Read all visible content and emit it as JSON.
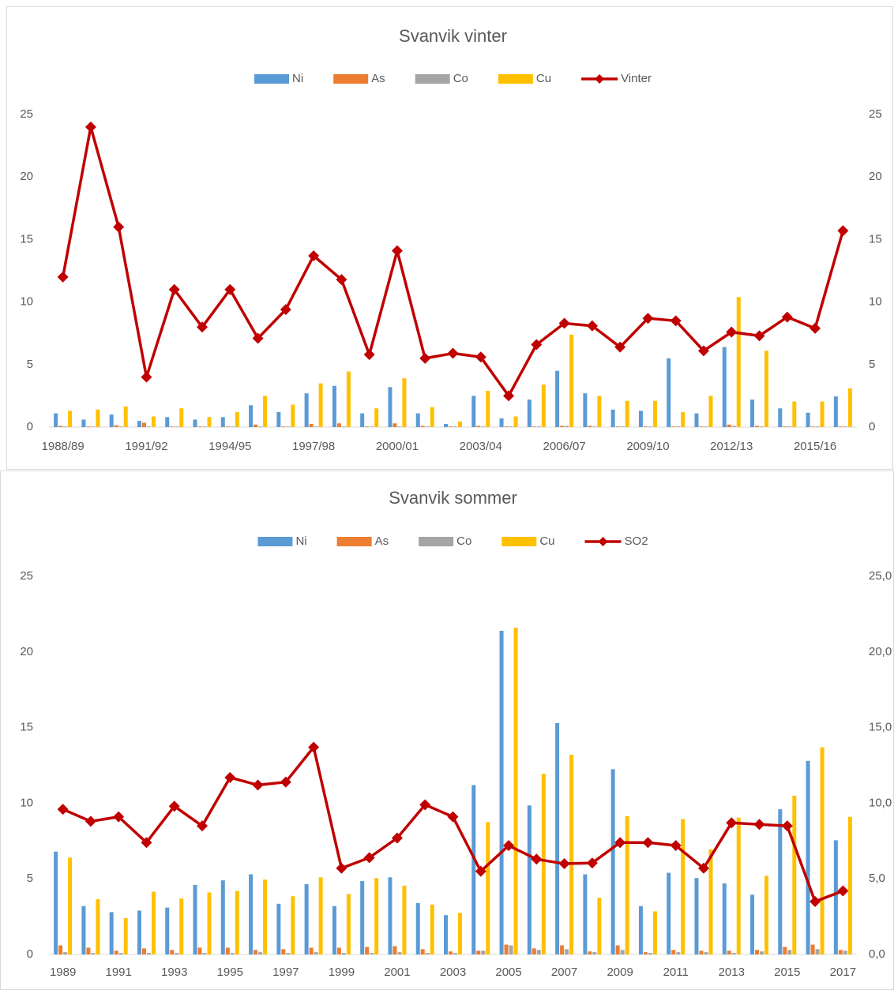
{
  "chart_data": [
    {
      "type": "bar",
      "title": "Svanvik vinter",
      "categories": [
        "1988/89",
        null,
        null,
        "1991/92",
        null,
        null,
        "1994/95",
        null,
        null,
        "1997/98",
        null,
        null,
        "2000/01",
        null,
        null,
        "2003/04",
        null,
        null,
        "2006/07",
        null,
        null,
        "2009/10",
        null,
        null,
        "2012/13",
        null,
        null,
        "2015/16",
        null
      ],
      "series": [
        {
          "name": "Ni",
          "color": "#5b9bd5",
          "values": [
            1.1,
            0.6,
            1.0,
            0.5,
            0.8,
            0.6,
            0.8,
            1.75,
            1.2,
            2.7,
            3.3,
            1.1,
            3.2,
            1.1,
            0.25,
            2.5,
            0.7,
            2.2,
            4.5,
            2.7,
            1.4,
            1.3,
            5.5,
            1.1,
            6.4,
            2.2,
            1.5,
            1.15,
            2.45
          ]
        },
        {
          "name": "As",
          "color": "#ed7d31",
          "values": [
            0.1,
            0.05,
            0.15,
            0.35,
            0.05,
            0.05,
            0.05,
            0.2,
            0.05,
            0.25,
            0.3,
            0.05,
            0.3,
            0.1,
            0.05,
            0.1,
            0.05,
            0.05,
            0.1,
            0.1,
            0.05,
            0.05,
            0.05,
            0.05,
            0.2,
            0.1,
            0.05,
            0.05,
            0.05
          ]
        },
        {
          "name": "Co",
          "color": "#a5a5a5",
          "values": [
            0.05,
            0.05,
            0.05,
            0.05,
            0.05,
            0.05,
            0.05,
            0.05,
            0.05,
            0.05,
            0.05,
            0.05,
            0.05,
            0.05,
            0.05,
            0.05,
            0.05,
            0.05,
            0.1,
            0.05,
            0.05,
            0.05,
            0.05,
            0.05,
            0.1,
            0.05,
            0.05,
            0.05,
            0.05
          ]
        },
        {
          "name": "Cu",
          "color": "#ffc000",
          "values": [
            1.3,
            1.4,
            1.65,
            0.85,
            1.5,
            0.8,
            1.2,
            2.5,
            1.8,
            3.5,
            4.45,
            1.5,
            3.9,
            1.6,
            0.45,
            2.9,
            0.85,
            3.4,
            7.4,
            2.5,
            2.1,
            2.1,
            1.2,
            2.5,
            10.4,
            6.1,
            2.05,
            2.05,
            3.1
          ]
        },
        {
          "name": "Vinter",
          "color": "#c00000",
          "type": "line",
          "axis": "y2",
          "values": [
            12,
            24,
            16,
            4,
            11,
            8,
            11,
            7.1,
            9.4,
            13.7,
            11.8,
            5.8,
            14.1,
            5.5,
            5.9,
            5.6,
            2.5,
            6.6,
            8.3,
            8.1,
            6.4,
            8.7,
            8.5,
            6.1,
            7.6,
            7.3,
            8.8,
            7.9,
            15.7
          ]
        }
      ],
      "ylim": [
        0,
        25
      ],
      "yticks": [
        0,
        5,
        10,
        15,
        20,
        25
      ],
      "y2lim": [
        0,
        25
      ],
      "y2ticks": [
        0,
        5,
        10,
        15,
        20,
        25
      ],
      "grid": false,
      "legend": "top"
    },
    {
      "type": "bar",
      "title": "Svanvik sommer",
      "categories": [
        "1989",
        null,
        "1991",
        null,
        "1993",
        null,
        "1995",
        null,
        "1997",
        null,
        "1999",
        null,
        "2001",
        null,
        "2003",
        null,
        "2005",
        null,
        "2007",
        null,
        "2009",
        null,
        "2011",
        null,
        "2013",
        null,
        "2015",
        null,
        "2017"
      ],
      "series": [
        {
          "name": "Ni",
          "color": "#5b9bd5",
          "values": [
            6.8,
            3.2,
            2.8,
            2.9,
            3.1,
            4.6,
            4.9,
            5.3,
            3.35,
            4.65,
            3.2,
            4.85,
            5.1,
            3.4,
            2.6,
            11.2,
            21.4,
            9.85,
            15.3,
            5.3,
            12.25,
            3.2,
            5.4,
            5.05,
            4.7,
            3.95,
            9.6,
            12.8,
            7.55
          ]
        },
        {
          "name": "As",
          "color": "#ed7d31",
          "values": [
            0.6,
            0.45,
            0.25,
            0.4,
            0.3,
            0.45,
            0.45,
            0.3,
            0.35,
            0.45,
            0.45,
            0.5,
            0.55,
            0.35,
            0.2,
            0.25,
            0.65,
            0.4,
            0.6,
            0.2,
            0.6,
            0.15,
            0.3,
            0.25,
            0.25,
            0.3,
            0.5,
            0.65,
            0.3
          ]
        },
        {
          "name": "Co",
          "color": "#a5a5a5",
          "values": [
            0.15,
            0.1,
            0.1,
            0.1,
            0.1,
            0.1,
            0.1,
            0.15,
            0.1,
            0.15,
            0.1,
            0.1,
            0.15,
            0.1,
            0.1,
            0.25,
            0.6,
            0.3,
            0.35,
            0.15,
            0.3,
            0.1,
            0.15,
            0.15,
            0.1,
            0.2,
            0.3,
            0.35,
            0.25
          ]
        },
        {
          "name": "Cu",
          "color": "#ffc000",
          "values": [
            6.4,
            3.65,
            2.4,
            4.15,
            3.7,
            4.1,
            4.2,
            4.95,
            3.85,
            5.1,
            4.0,
            5.05,
            4.55,
            3.3,
            2.75,
            8.75,
            21.6,
            11.95,
            13.2,
            3.75,
            9.15,
            2.85,
            8.95,
            6.95,
            9.05,
            5.2,
            10.5,
            13.7,
            9.1
          ]
        },
        {
          "name": "SO2",
          "color": "#c00000",
          "type": "line",
          "axis": "y2",
          "values": [
            9.6,
            8.8,
            9.1,
            7.4,
            9.8,
            8.5,
            11.7,
            11.2,
            11.4,
            13.7,
            5.7,
            6.4,
            7.7,
            9.9,
            9.1,
            5.5,
            7.2,
            6.3,
            6.0,
            6.05,
            7.4,
            7.4,
            7.2,
            5.7,
            8.7,
            8.6,
            8.5,
            3.5,
            4.2
          ]
        }
      ],
      "ylim": [
        0,
        25
      ],
      "yticks": [
        0,
        5,
        10,
        15,
        20,
        25
      ],
      "y2lim": [
        0,
        25
      ],
      "y2ticks": [
        {
          "value": 0,
          "label": "0,0"
        },
        {
          "value": 5,
          "label": "5,0"
        },
        {
          "value": 10,
          "label": "10,0"
        },
        {
          "value": 15,
          "label": "15,0"
        },
        {
          "value": 20,
          "label": "20,0"
        },
        {
          "value": 25,
          "label": "25,0"
        }
      ],
      "grid": false,
      "legend": "top"
    }
  ]
}
